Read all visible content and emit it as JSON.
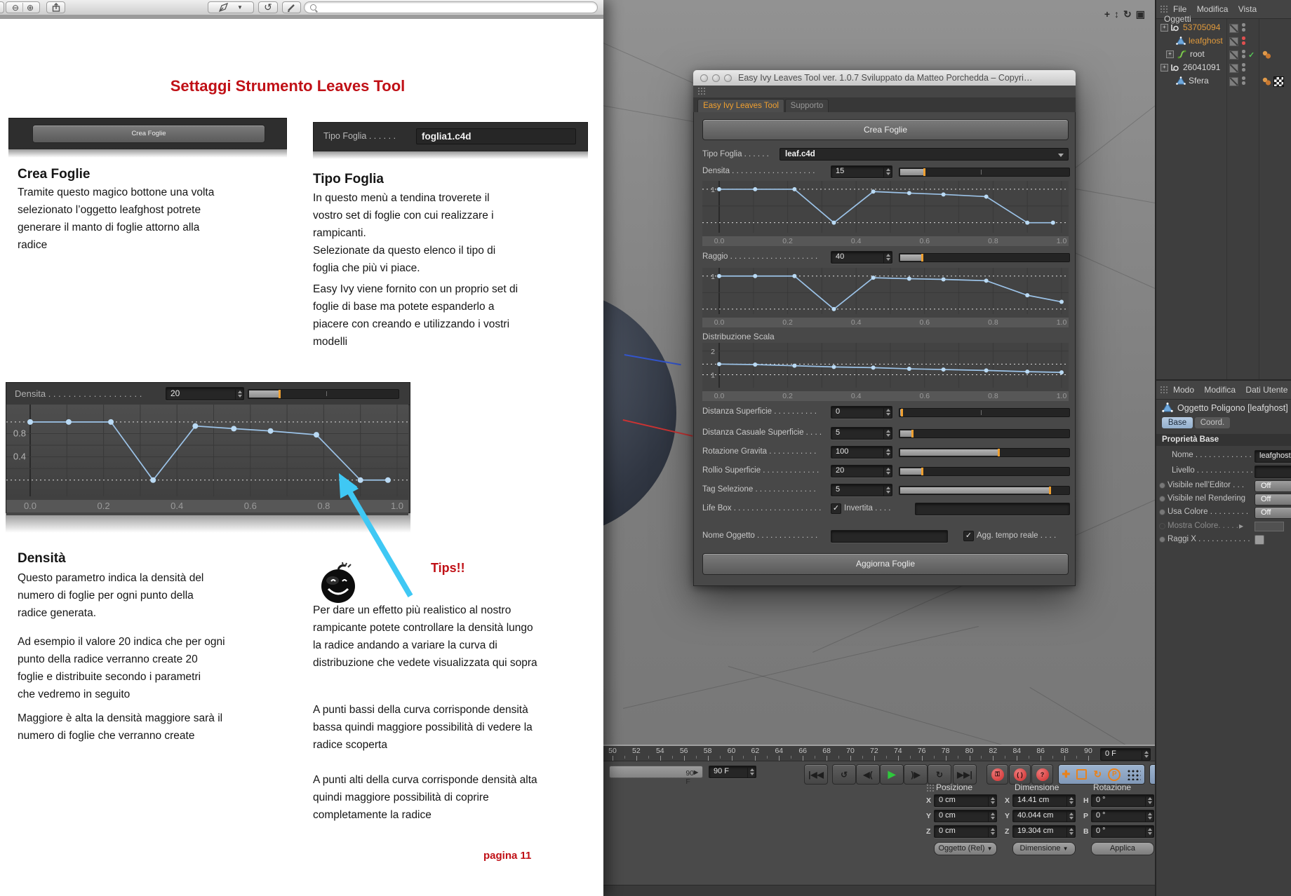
{
  "preview": {
    "search_value": ""
  },
  "document": {
    "title": "Settaggi Strumento Leaves Tool",
    "crea_image": {
      "button": "Crea Foglie"
    },
    "tipo_image": {
      "label": "Tipo Foglia . . . . . .",
      "value": "foglia1.c4d"
    },
    "densita_image": {
      "label": "Densita . . . . . . . . . . . . . . . . . . .",
      "value": "20"
    },
    "crea": {
      "heading": "Crea Foglie",
      "body": "Tramite questo magico bottone una volta\nselezionato l’oggetto leafghost potrete\ngenerare il manto di foglie attorno alla\nradice"
    },
    "tipo": {
      "heading": "Tipo Foglia",
      "body1": "In questo menù a tendina troverete il\nvostro set di foglie con cui realizzare i\nrampicanti.\nSelezionate da questo elenco il tipo di\nfoglia che più vi piace.",
      "body2": "Easy Ivy viene fornito con un proprio set di\nfoglie di base ma potete espanderlo a\npiacere con creando e utilizzando i vostri\nmodelli"
    },
    "densita": {
      "heading": "Densità",
      "p1": "Questo parametro indica la densità del\nnumero di foglie per ogni punto della\nradice generata.",
      "p2": "Ad esempio il valore 20 indica che per ogni\npunto della radice verranno create 20\nfoglie e distribuite secondo i parametri\nche vedremo in seguito",
      "p3": "Maggiore è alta la densità maggiore sarà il\nnumero di foglie che verranno create"
    },
    "tips": {
      "heading": "Tips!!",
      "p1": "Per dare un effetto più realistico al nostro\nrampicante potete controllare la densità lungo\nla radice andando a variare la curva di\ndistribuzione che vedete visualizzata qui sopra",
      "p2": "A punti bassi della curva corrisponde densità\nbassa quindi maggiore possibilità di vedere la\nradice scoperta",
      "p3": "A punti alti della curva corrisponde densità alta\nquindi maggiore possibilità di coprire\ncompletamente la radice"
    },
    "page_number": "pagina 11"
  },
  "curves": {
    "doc_densita": {
      "x_ticks": [
        "0.0",
        "0.2",
        "0.4",
        "0.6",
        "0.8",
        "1.0"
      ],
      "y_labels": [
        {
          "t": "0.8",
          "v": 0.8
        },
        {
          "t": "0.4",
          "v": 0.4
        }
      ],
      "hgrid": [
        0.2,
        0.4,
        0.6,
        0.8
      ],
      "dotted": [
        1.0,
        0.0
      ],
      "ymin": -0.28,
      "ymax": 1.3,
      "points": [
        [
          0,
          1
        ],
        [
          0.105,
          1
        ],
        [
          0.22,
          1
        ],
        [
          0.335,
          0
        ],
        [
          0.45,
          0.93
        ],
        [
          0.555,
          0.885
        ],
        [
          0.655,
          0.845
        ],
        [
          0.78,
          0.78
        ],
        [
          0.9,
          0
        ],
        [
          0.975,
          0
        ]
      ]
    },
    "dlg_densita": {
      "x_ticks": [
        "0.0",
        "0.2",
        "0.4",
        "0.6",
        "0.8",
        "1.0"
      ],
      "y_labels": [
        {
          "t": "1",
          "v": 1
        }
      ],
      "hgrid": [
        0.5
      ],
      "dotted": [
        1.0,
        0.0
      ],
      "ymin": -0.3,
      "ymax": 1.25,
      "points": [
        [
          0,
          1
        ],
        [
          0.105,
          1
        ],
        [
          0.22,
          1
        ],
        [
          0.335,
          0
        ],
        [
          0.45,
          0.93
        ],
        [
          0.555,
          0.885
        ],
        [
          0.655,
          0.845
        ],
        [
          0.78,
          0.78
        ],
        [
          0.9,
          0
        ],
        [
          0.975,
          0
        ]
      ]
    },
    "dlg_raggio": {
      "x_ticks": [
        "0.0",
        "0.2",
        "0.4",
        "0.6",
        "0.8",
        "1.0"
      ],
      "y_labels": [
        {
          "t": "1",
          "v": 1
        }
      ],
      "hgrid": [
        0.5
      ],
      "dotted": [
        1.0,
        0.0
      ],
      "ymin": -0.15,
      "ymax": 1.25,
      "points": [
        [
          0,
          1
        ],
        [
          0.105,
          1
        ],
        [
          0.22,
          1
        ],
        [
          0.335,
          0
        ],
        [
          0.45,
          0.95
        ],
        [
          0.555,
          0.92
        ],
        [
          0.655,
          0.9
        ],
        [
          0.78,
          0.86
        ],
        [
          0.9,
          0.42
        ],
        [
          1,
          0.22
        ]
      ]
    },
    "dlg_distrib": {
      "x_ticks": [
        "0.0",
        "0.2",
        "0.4",
        "0.6",
        "0.8",
        "1.0"
      ],
      "y_labels": [
        {
          "t": "2",
          "v": 2
        },
        {
          "t": "1",
          "v": 1
        }
      ],
      "hgrid": [
        2.0
      ],
      "dotted": [
        1.45,
        1.0
      ],
      "ymin": 0.45,
      "ymax": 2.35,
      "points": [
        [
          0,
          1.45
        ],
        [
          0.105,
          1.43
        ],
        [
          0.22,
          1.38
        ],
        [
          0.335,
          1.33
        ],
        [
          0.45,
          1.3
        ],
        [
          0.555,
          1.25
        ],
        [
          0.655,
          1.22
        ],
        [
          0.78,
          1.18
        ],
        [
          0.9,
          1.13
        ],
        [
          1,
          1.1
        ]
      ]
    }
  },
  "dialog": {
    "title": "Easy Ivy Leaves Tool ver. 1.0.7 Sviluppato da Matteo Porchedda – Copyri…",
    "tab_active": "Easy Ivy Leaves Tool",
    "tab_inactive": "Supporto",
    "crea_button": "Crea Foglie",
    "tipo_label": "Tipo Foglia . . . . . .",
    "tipo_value": "leaf.c4d",
    "distrib_label": "Distribuzione Scala",
    "params": [
      {
        "label": "Densita . . . . . . . . . . . . . . . . . . .",
        "value": "15",
        "fill": 0.14,
        "tick": 0.48
      },
      {
        "label": "Raggio . . . . . . . . . . . . . . . . . . . .",
        "value": "40",
        "fill": 0.13,
        "tick": null
      },
      {
        "label": "Distanza Superficie . . . . . . . . . .",
        "value": "0",
        "fill": 0.008,
        "tick": 0.48
      },
      {
        "label": "Distanza Casuale Superficie . . . .",
        "value": "5",
        "fill": 0.07,
        "tick": null
      },
      {
        "label": "Rotazione Gravita . . . . . . . . . . .",
        "value": "100",
        "fill": 0.58,
        "tick": null
      },
      {
        "label": "Rollio Superficie . . . . . . . . . . . . .",
        "value": "20",
        "fill": 0.13,
        "tick": null
      },
      {
        "label": "Tag Selezione . . . . . . . . . . . . . .",
        "value": "5",
        "fill": 0.88,
        "tick": null
      }
    ],
    "lifebox_label": "Life Box . . . . . . . . . . . . . . . . . . . .",
    "invertita_label": "Invertita . . . .",
    "nome_label": "Nome Oggetto . . . . . . . . . . . . . .",
    "realtime_label": "Agg. tempo reale . . . .",
    "aggiorna_button": "Aggiorna Foglie"
  },
  "object_manager": {
    "menu": [
      "File",
      "Modifica",
      "Vista",
      "Oggetti"
    ],
    "rows": [
      {
        "lvl": 0,
        "exp": true,
        "icon": "null",
        "label": "53705094",
        "color": "#e09a3c",
        "dots": "#8d8d8d",
        "check": false,
        "tags": []
      },
      {
        "lvl": 1,
        "exp": false,
        "icon": "polygon",
        "label": "leafghost",
        "color": "#e09a3c",
        "dots": "#e05050",
        "check": false,
        "tags": []
      },
      {
        "lvl": 1,
        "exp": true,
        "icon": "spline",
        "label": "root",
        "color": "#d8d8d8",
        "dots": "#8d8d8d",
        "check": true,
        "tags": [
          "balls"
        ]
      },
      {
        "lvl": 0,
        "exp": true,
        "icon": "null",
        "label": "26041091",
        "color": "#d8d8d8",
        "dots": "#8d8d8d",
        "check": false,
        "tags": []
      },
      {
        "lvl": 1,
        "exp": false,
        "icon": "polygon",
        "label": "Sfera",
        "color": "#d8d8d8",
        "dots": "#8d8d8d",
        "check": false,
        "tags": [
          "balls",
          "checker"
        ]
      }
    ]
  },
  "attribute_manager": {
    "menu": [
      "Modo",
      "Modifica",
      "Dati Utente"
    ],
    "object_title": "Oggetto Poligono [leafghost]",
    "tabs": [
      "Base",
      "Coord."
    ],
    "section": "Proprietà Base",
    "rows": [
      {
        "label": "Nome . . . . . . . . . . . . . .",
        "value": "leafghost"
      },
      {
        "label": "Livello . . . . . . . . . . . . .",
        "value": ""
      },
      {
        "label": "Visibile nell’Editor . . .",
        "value": "Off"
      },
      {
        "label": "Visibile nel Rendering",
        "value": "Off"
      },
      {
        "label": "Usa Colore . . . . . . . . .",
        "value": "Off"
      },
      {
        "label": "Mostra Colore. . . . .",
        "value": ""
      },
      {
        "label": "Raggi X . . . . . . . . . . . .",
        "value": ""
      }
    ]
  },
  "timeline": {
    "ruler": [
      "50",
      "52",
      "54",
      "56",
      "58",
      "60",
      "62",
      "64",
      "66",
      "68",
      "70",
      "72",
      "74",
      "76",
      "78",
      "80",
      "82",
      "84",
      "86",
      "88",
      "90"
    ],
    "slider_label": "90 F",
    "spinner_value": "90 F",
    "current_frame": "0 F"
  },
  "transport": {
    "buttons": [
      {
        "name": "goto-start-button",
        "glyph": "|◀◀"
      },
      {
        "name": "goto-previous-key-button",
        "glyph": "↺"
      },
      {
        "name": "play-backwards-button",
        "glyph": "◀("
      },
      {
        "name": "play-button",
        "glyph": "▶",
        "green": true
      },
      {
        "name": "goto-next-key-button",
        "glyph": ")▶"
      },
      {
        "name": "loop-button",
        "glyph": "↻"
      },
      {
        "name": "goto-end-button",
        "glyph": "▶▶|"
      }
    ],
    "record_buttons": [
      {
        "name": "record-keyframe-button",
        "glyph": "⚷"
      },
      {
        "name": "autokey-button",
        "glyph": "( )"
      },
      {
        "name": "keying-help-button",
        "glyph": "?"
      }
    ]
  },
  "coords": {
    "groups": [
      {
        "header": "Posizione",
        "rows": [
          [
            "X",
            "0 cm"
          ],
          [
            "Y",
            "0 cm"
          ],
          [
            "Z",
            "0 cm"
          ]
        ],
        "footer": "Oggetto (Rel)",
        "footer_type": "dropdown"
      },
      {
        "header": "Dimensione",
        "rows": [
          [
            "X",
            "14.41 cm"
          ],
          [
            "Y",
            "40.044 cm"
          ],
          [
            "Z",
            "19.304 cm"
          ]
        ],
        "footer": "Dimensione",
        "footer_type": "dropdown"
      },
      {
        "header": "Rotazione",
        "rows": [
          [
            "H",
            "0 °"
          ],
          [
            "P",
            "0 °"
          ],
          [
            "B",
            "0 °"
          ]
        ],
        "footer": "Applica",
        "footer_type": "button"
      }
    ]
  }
}
